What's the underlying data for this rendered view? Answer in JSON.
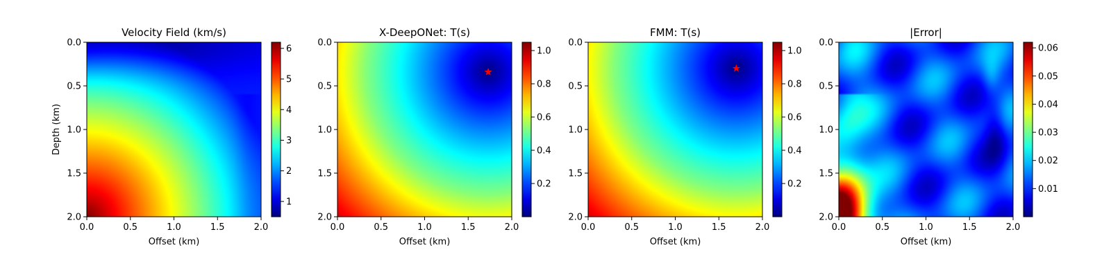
{
  "chart_data": [
    {
      "type": "heatmap",
      "title": "Velocity Field (km/s)",
      "xlabel": "Offset (km)",
      "ylabel": "Depth (km)",
      "xlim": [
        0.0,
        2.0
      ],
      "ylim": [
        2.0,
        0.0
      ],
      "x_ticks": [
        "0.0",
        "0.5",
        "1.0",
        "1.5",
        "2.0"
      ],
      "y_ticks": [
        "0.0",
        "0.5",
        "1.0",
        "1.5",
        "2.0"
      ],
      "colormap": "jet",
      "colorbar_range": [
        0.5,
        6.2
      ],
      "colorbar_ticks": [
        "1",
        "2",
        "3",
        "4",
        "5",
        "6"
      ],
      "colorbar_tick_values": [
        1,
        2,
        3,
        4,
        5,
        6
      ],
      "field": "velocity"
    },
    {
      "type": "heatmap",
      "title": "X-DeepONet: T(s)",
      "xlabel": "Offset (km)",
      "ylabel": "",
      "xlim": [
        0.0,
        2.0
      ],
      "ylim": [
        2.0,
        0.0
      ],
      "x_ticks": [
        "0.0",
        "0.5",
        "1.0",
        "1.5",
        "2.0"
      ],
      "y_ticks": [
        "0.0",
        "0.5",
        "1.0",
        "1.5",
        "2.0"
      ],
      "colormap": "jet",
      "colorbar_range": [
        0.0,
        1.05
      ],
      "colorbar_ticks": [
        "0.2",
        "0.4",
        "0.6",
        "0.8",
        "1.0"
      ],
      "colorbar_tick_values": [
        0.2,
        0.4,
        0.6,
        0.8,
        1.0
      ],
      "field": "traveltime",
      "source": {
        "x": 1.73,
        "y": 0.34,
        "marker": "star",
        "color": "#ff0000"
      }
    },
    {
      "type": "heatmap",
      "title": "FMM: T(s)",
      "xlabel": "Offset (km)",
      "ylabel": "",
      "xlim": [
        0.0,
        2.0
      ],
      "ylim": [
        2.0,
        0.0
      ],
      "x_ticks": [
        "0.0",
        "0.5",
        "1.0",
        "1.5",
        "2.0"
      ],
      "y_ticks": [
        "0.0",
        "0.5",
        "1.0",
        "1.5",
        "2.0"
      ],
      "colormap": "jet",
      "colorbar_range": [
        0.0,
        1.05
      ],
      "colorbar_ticks": [
        "0.2",
        "0.4",
        "0.6",
        "0.8",
        "1.0"
      ],
      "colorbar_tick_values": [
        0.2,
        0.4,
        0.6,
        0.8,
        1.0
      ],
      "field": "traveltime",
      "source": {
        "x": 1.7,
        "y": 0.3,
        "marker": "star",
        "color": "#ff0000"
      }
    },
    {
      "type": "heatmap",
      "title": "|Error|",
      "xlabel": "Offset (km)",
      "ylabel": "",
      "xlim": [
        0.0,
        2.0
      ],
      "ylim": [
        2.0,
        0.0
      ],
      "x_ticks": [
        "0.0",
        "0.5",
        "1.0",
        "1.5",
        "2.0"
      ],
      "y_ticks": [
        "0.0",
        "0.5",
        "1.0",
        "1.5",
        "2.0"
      ],
      "colormap": "jet",
      "colorbar_range": [
        0.0,
        0.062
      ],
      "colorbar_ticks": [
        "0.01",
        "0.02",
        "0.03",
        "0.04",
        "0.05",
        "0.06"
      ],
      "colorbar_tick_values": [
        0.01,
        0.02,
        0.03,
        0.04,
        0.05,
        0.06
      ],
      "field": "error"
    }
  ]
}
